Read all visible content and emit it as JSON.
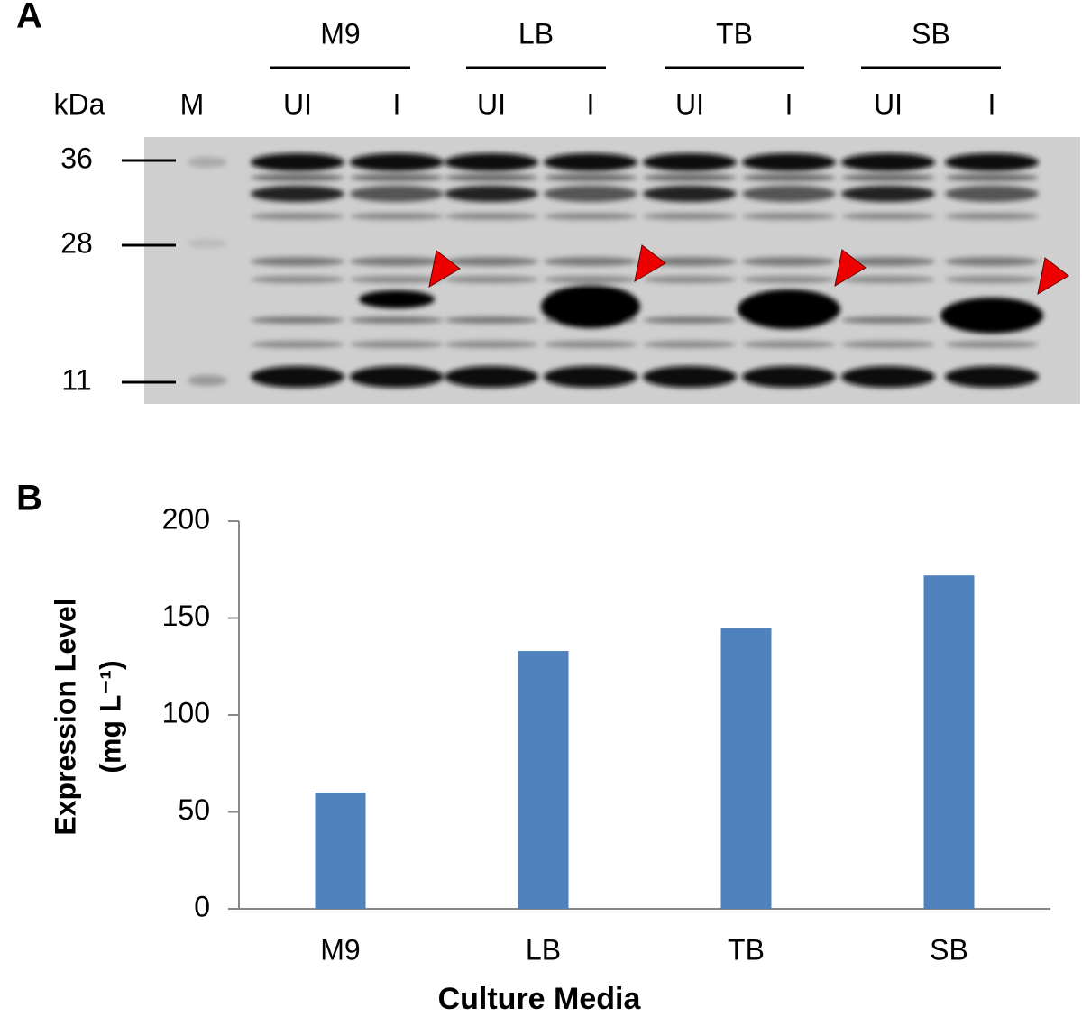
{
  "panel_labels": [
    "A",
    "B"
  ],
  "gel": {
    "unit_label": "kDa",
    "marker_lane_label": "M",
    "groups": [
      {
        "name": "M9",
        "lanes": [
          "UI",
          "I"
        ]
      },
      {
        "name": "LB",
        "lanes": [
          "UI",
          "I"
        ]
      },
      {
        "name": "TB",
        "lanes": [
          "UI",
          "I"
        ]
      },
      {
        "name": "SB",
        "lanes": [
          "UI",
          "I"
        ]
      }
    ],
    "markers": [
      36,
      28,
      11
    ]
  },
  "chart_data": {
    "type": "bar",
    "categories": [
      "M9",
      "LB",
      "TB",
      "SB"
    ],
    "values": [
      60,
      133,
      145,
      172
    ],
    "color": "#4f81bd",
    "ylim": [
      0,
      200
    ],
    "yticks": [
      0,
      50,
      100,
      150,
      200
    ],
    "grid": false,
    "y_label": [
      "Expression Level",
      "(mg L⁻¹)"
    ],
    "x_label": "Culture Media"
  }
}
